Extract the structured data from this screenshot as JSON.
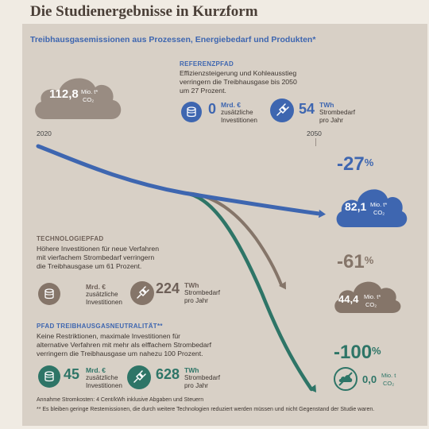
{
  "page_title": "Die Studienergebnisse in Kurzform",
  "subtitle": "Treibhausgasemissionen aus Prozessen, Energiebedarf und Produkten*",
  "colors": {
    "blue": "#3e66b0",
    "brown": "#857569",
    "green": "#2e7567",
    "cloud_start": "#998c82",
    "panel": "#d8d0c6"
  },
  "start_cloud": {
    "value": "112,8",
    "unit": "Mio. t*",
    "unit2": "CO₂"
  },
  "years": {
    "start": "2020",
    "end": "2050"
  },
  "reference": {
    "heading": "REFERENZPFAD",
    "desc_lines": [
      "Effizienzsteigerung und Kohleausstieg",
      "verringern die Treibhausgase bis 2050",
      "um 27 Prozent."
    ],
    "invest_value": "0",
    "invest_unit": "Mrd. €",
    "invest_label_1": "zusätzliche",
    "invest_label_2": "Investitionen",
    "power_value": "54",
    "power_unit": "TWh",
    "power_label_1": "Strombedarf",
    "power_label_2": "pro Jahr",
    "pct": "-27",
    "cloud_value": "82,1",
    "cloud_unit": "Mio. t*",
    "cloud_unit2": "CO₂"
  },
  "technology": {
    "heading": "TECHNOLOGIEPFAD",
    "desc_lines": [
      "Höhere Investitionen für neue Verfahren",
      "mit vierfachem Strombedarf verringern",
      "die Treibhausgase um 61 Prozent."
    ],
    "invest_value": "",
    "invest_unit": "Mrd. €",
    "invest_label_1": "zusätzliche",
    "invest_label_2": "Investitionen",
    "power_value": "224",
    "power_unit": "TWh",
    "power_label_1": "Strombedarf",
    "power_label_2": "pro Jahr",
    "pct": "-61",
    "cloud_value": "44,4",
    "cloud_unit": "Mio. t*",
    "cloud_unit2": "CO₂"
  },
  "neutrality": {
    "heading": "PFAD TREIBHAUSGASNEUTRALITÄT**",
    "desc_lines": [
      "Keine Restriktionen, maximale Investitionen für",
      "alternative Verfahren mit mehr als elffachem Strombedarf",
      "verringern die Treibhausgase um nahezu 100 Prozent."
    ],
    "invest_value": "45",
    "invest_unit": "Mrd. €",
    "invest_label_1": "zusätzliche",
    "invest_label_2": "Investitionen",
    "power_value": "628",
    "power_unit": "TWh",
    "power_label_1": "Strombedarf",
    "power_label_2": "pro Jahr",
    "pct": "-100",
    "end_value": "0,0",
    "end_unit": "Mio. t",
    "end_unit2": "CO₂"
  },
  "footnotes": {
    "cost": "Annahme Stromkosten: 4 Cent/kWh inklusive Abgaben und Steuern",
    "restemission": "** Es bleiben geringe Restemissionen, die durch weitere Technologien reduziert werden müssen und nicht Gegenstand der Studie waren."
  },
  "chart_data": {
    "type": "line",
    "x": [
      "2020",
      "2050"
    ],
    "unit": "Mio. t CO₂",
    "series": [
      {
        "name": "REFERENZPFAD",
        "values": [
          112.8,
          82.1
        ],
        "change": "-27%"
      },
      {
        "name": "TECHNOLOGIEPFAD",
        "values": [
          112.8,
          44.4
        ],
        "change": "-61%"
      },
      {
        "name": "PFAD TREIBHAUSGASNEUTRALITÄT",
        "values": [
          112.8,
          0.0
        ],
        "change": "-100%"
      }
    ]
  }
}
